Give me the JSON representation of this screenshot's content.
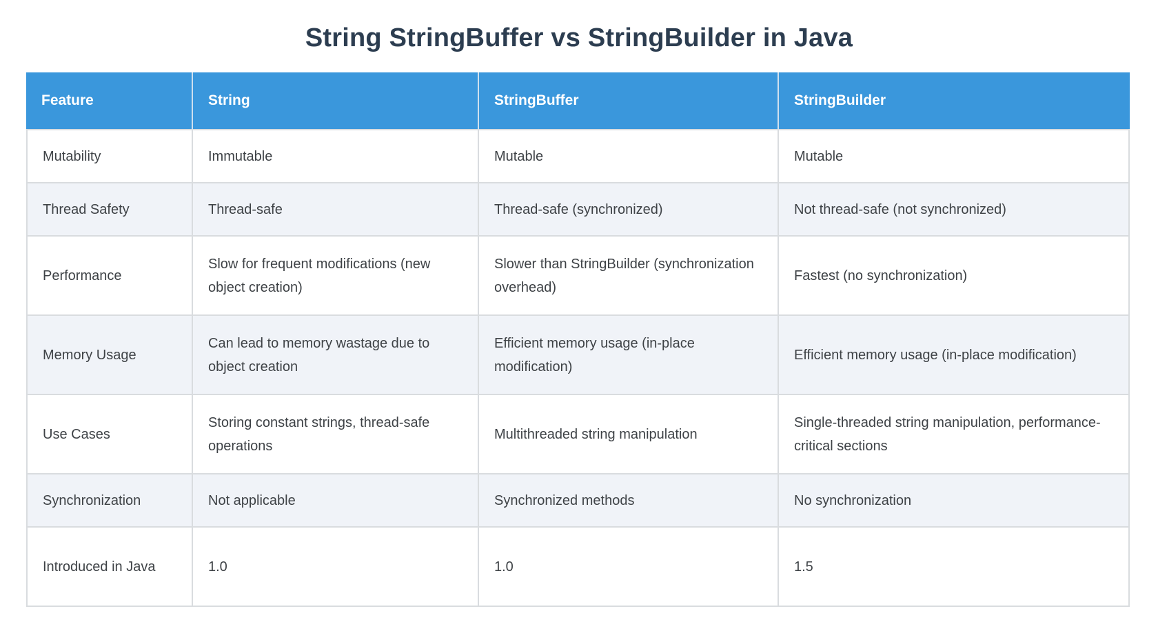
{
  "page": {
    "title": "String StringBuffer vs StringBuilder in Java"
  },
  "colors": {
    "header_bg": "#3a97dc",
    "header_text": "#ffffff",
    "row_bg": "#ffffff",
    "row_alt_bg": "#f0f3f8",
    "border": "#d9dcdf",
    "title_text": "#2c3d50",
    "body_text": "#3e4246"
  },
  "table": {
    "headers": [
      "Feature",
      "String",
      "StringBuffer",
      "StringBuilder"
    ],
    "rows": [
      {
        "feature": "Mutability",
        "string": "Immutable",
        "stringbuffer": "Mutable",
        "stringbuilder": "Mutable"
      },
      {
        "feature": "Thread Safety",
        "string": "Thread-safe",
        "stringbuffer": "Thread-safe (synchronized)",
        "stringbuilder": "Not thread-safe (not synchronized)"
      },
      {
        "feature": "Performance",
        "string": "Slow for frequent modifications (new object creation)",
        "stringbuffer": "Slower than StringBuilder (synchronization overhead)",
        "stringbuilder": "Fastest (no synchronization)"
      },
      {
        "feature": "Memory Usage",
        "string": "Can lead to memory wastage due to object creation",
        "stringbuffer": "Efficient memory usage (in-place modification)",
        "stringbuilder": "Efficient memory usage (in-place modification)"
      },
      {
        "feature": "Use Cases",
        "string": "Storing constant strings, thread-safe operations",
        "stringbuffer": "Multithreaded string manipulation",
        "stringbuilder": "Single-threaded string manipulation, performance-critical sections"
      },
      {
        "feature": "Synchronization",
        "string": "Not applicable",
        "stringbuffer": "Synchronized methods",
        "stringbuilder": "No synchronization"
      },
      {
        "feature": "Introduced in Java",
        "string": "1.0",
        "stringbuffer": "1.0",
        "stringbuilder": "1.5"
      }
    ]
  }
}
